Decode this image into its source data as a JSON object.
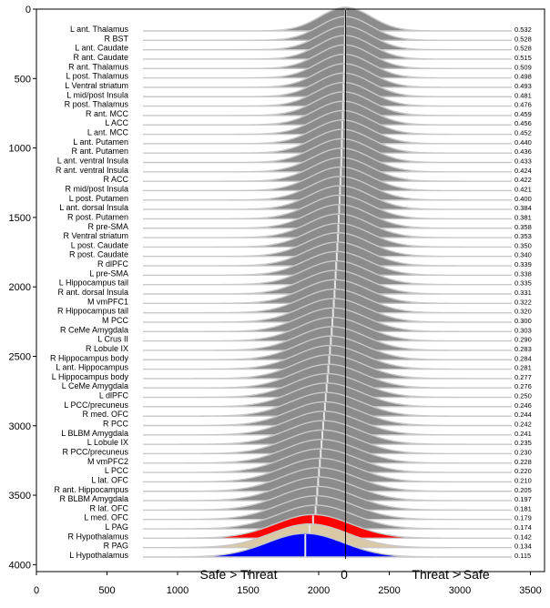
{
  "chart_data": {
    "type": "ridgeline",
    "title": "",
    "xlabel": "",
    "ylabel": "",
    "xlim": [
      0,
      3600
    ],
    "ylim": [
      4050,
      0
    ],
    "xticks": [
      "0",
      "500",
      "1000",
      "1500",
      "2000",
      "2500",
      "3000",
      "3500"
    ],
    "yticks": [
      "0",
      "500",
      "1000",
      "1500",
      "2000",
      "2500",
      "3000",
      "3500",
      "4000"
    ],
    "zero_line_x": 2190,
    "annotations": {
      "left": "Safe > Threat",
      "center": "0",
      "right": "Threat > Safe"
    },
    "colors": {
      "default": "#8c8c8c",
      "outline": "#c8c8c8",
      "red": "#ff0000",
      "tan": "#d9c9a6",
      "blue": "#0000ff",
      "median": "#e6e6e6"
    },
    "regions": [
      {
        "label": "L ant. Thalamus",
        "value": "0.532",
        "peak": 2190,
        "color": "default"
      },
      {
        "label": "R BST",
        "value": "0.528",
        "peak": 2188,
        "color": "default"
      },
      {
        "label": "L ant. Caudate",
        "value": "0.528",
        "peak": 2187,
        "color": "default"
      },
      {
        "label": "R ant. Caudate",
        "value": "0.515",
        "peak": 2185,
        "color": "default"
      },
      {
        "label": "R ant. Thalamus",
        "value": "0.509",
        "peak": 2183,
        "color": "default"
      },
      {
        "label": "L post. Thalamus",
        "value": "0.498",
        "peak": 2181,
        "color": "default"
      },
      {
        "label": "L Ventral striatum",
        "value": "0.493",
        "peak": 2180,
        "color": "default"
      },
      {
        "label": "L mid/post Insula",
        "value": "0.481",
        "peak": 2178,
        "color": "default"
      },
      {
        "label": "R post. Thalamus",
        "value": "0.476",
        "peak": 2176,
        "color": "default"
      },
      {
        "label": "R ant. MCC",
        "value": "0.459",
        "peak": 2175,
        "color": "default"
      },
      {
        "label": "L ACC",
        "value": "0.456",
        "peak": 2173,
        "color": "default"
      },
      {
        "label": "L ant. MCC",
        "value": "0.452",
        "peak": 2171,
        "color": "default"
      },
      {
        "label": "L ant. Putamen",
        "value": "0.440",
        "peak": 2168,
        "color": "default"
      },
      {
        "label": "R ant. Putamen",
        "value": "0.436",
        "peak": 2166,
        "color": "default"
      },
      {
        "label": "L ant. ventral Insula",
        "value": "0.433",
        "peak": 2164,
        "color": "default"
      },
      {
        "label": "R ant. ventral Insula",
        "value": "0.424",
        "peak": 2162,
        "color": "default"
      },
      {
        "label": "R ACC",
        "value": "0.422",
        "peak": 2160,
        "color": "default"
      },
      {
        "label": "R mid/post Insula",
        "value": "0.421",
        "peak": 2157,
        "color": "default"
      },
      {
        "label": "L post. Putamen",
        "value": "0.400",
        "peak": 2154,
        "color": "default"
      },
      {
        "label": "L ant. dorsal Insula",
        "value": "0.384",
        "peak": 2151,
        "color": "default"
      },
      {
        "label": "R post. Putamen",
        "value": "0.381",
        "peak": 2148,
        "color": "default"
      },
      {
        "label": "R pre-SMA",
        "value": "0.358",
        "peak": 2145,
        "color": "default"
      },
      {
        "label": "R Ventral striatum",
        "value": "0.353",
        "peak": 2142,
        "color": "default"
      },
      {
        "label": "L post. Caudate",
        "value": "0.350",
        "peak": 2139,
        "color": "default"
      },
      {
        "label": "R post. Caudate",
        "value": "0.340",
        "peak": 2136,
        "color": "default"
      },
      {
        "label": "R dlPFC",
        "value": "0.339",
        "peak": 2132,
        "color": "default"
      },
      {
        "label": "L pre-SMA",
        "value": "0.338",
        "peak": 2128,
        "color": "default"
      },
      {
        "label": "L Hippocampus tail",
        "value": "0.335",
        "peak": 2124,
        "color": "default"
      },
      {
        "label": "R ant. dorsal Insula",
        "value": "0.331",
        "peak": 2120,
        "color": "default"
      },
      {
        "label": "M vmPFC1",
        "value": "0.322",
        "peak": 2116,
        "color": "default"
      },
      {
        "label": "R Hippocampus tail",
        "value": "0.320",
        "peak": 2112,
        "color": "default"
      },
      {
        "label": "M PCC",
        "value": "0.300",
        "peak": 2107,
        "color": "default"
      },
      {
        "label": "R CeMe Amygdala",
        "value": "0.303",
        "peak": 2102,
        "color": "default"
      },
      {
        "label": "L Crus II",
        "value": "0.290",
        "peak": 2097,
        "color": "default"
      },
      {
        "label": "R Lobule IX",
        "value": "0.283",
        "peak": 2092,
        "color": "default"
      },
      {
        "label": "R Hippocampus body",
        "value": "0.284",
        "peak": 2086,
        "color": "default"
      },
      {
        "label": "L ant. Hippocampus",
        "value": "0.281",
        "peak": 2080,
        "color": "default"
      },
      {
        "label": "L Hippocampus body",
        "value": "0.277",
        "peak": 2074,
        "color": "default"
      },
      {
        "label": "L CeMe Amygdala",
        "value": "0.276",
        "peak": 2068,
        "color": "default"
      },
      {
        "label": "L dlPFC",
        "value": "0.250",
        "peak": 2062,
        "color": "default"
      },
      {
        "label": "L PCC/precuneus",
        "value": "0.246",
        "peak": 2056,
        "color": "default"
      },
      {
        "label": "R med. OFC",
        "value": "0.244",
        "peak": 2050,
        "color": "default"
      },
      {
        "label": "R PCC",
        "value": "0.242",
        "peak": 2044,
        "color": "default"
      },
      {
        "label": "L BLBM Amygdala",
        "value": "0.241",
        "peak": 2038,
        "color": "default"
      },
      {
        "label": "L Lobule IX",
        "value": "0.235",
        "peak": 2032,
        "color": "default"
      },
      {
        "label": "R PCC/precuneus",
        "value": "0.230",
        "peak": 2026,
        "color": "default"
      },
      {
        "label": "M vmPFC2",
        "value": "0.228",
        "peak": 2020,
        "color": "default"
      },
      {
        "label": "L PCC",
        "value": "0.220",
        "peak": 2014,
        "color": "default"
      },
      {
        "label": "L lat. OFC",
        "value": "0.210",
        "peak": 2008,
        "color": "default"
      },
      {
        "label": "R ant. Hippocampus",
        "value": "0.205",
        "peak": 2002,
        "color": "default"
      },
      {
        "label": "R BLBM Amygdala",
        "value": "0.197",
        "peak": 1996,
        "color": "default"
      },
      {
        "label": "R lat. OFC",
        "value": "0.181",
        "peak": 1990,
        "color": "default"
      },
      {
        "label": "L med. OFC",
        "value": "0.179",
        "peak": 1984,
        "color": "default"
      },
      {
        "label": "L PAG",
        "value": "0.174",
        "peak": 1978,
        "color": "default"
      },
      {
        "label": "R Hypothalamus",
        "value": "0.142",
        "peak": 1960,
        "color": "red"
      },
      {
        "label": "R PAG",
        "value": "0.134",
        "peak": 1935,
        "color": "tan"
      },
      {
        "label": "L Hypothalamus",
        "value": "0.115",
        "peak": 1905,
        "color": "blue"
      }
    ]
  }
}
